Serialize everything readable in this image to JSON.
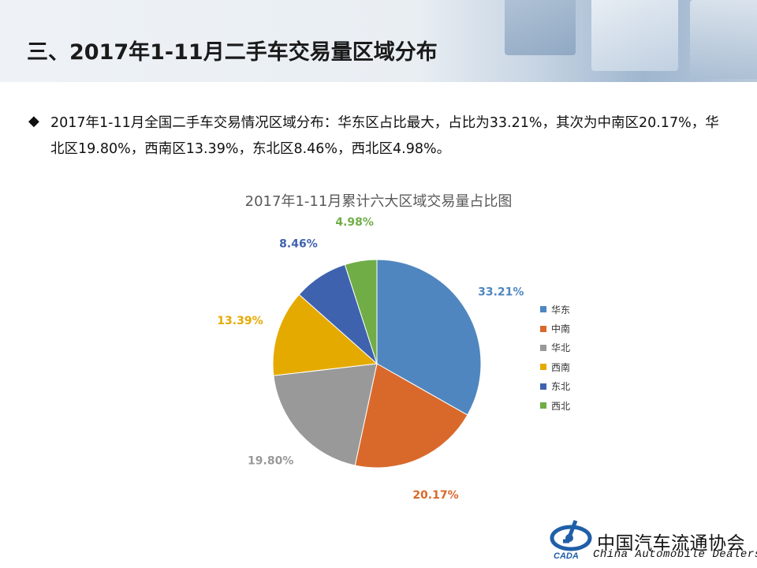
{
  "header": {
    "title": "三、2017年1-11月二手车交易量区域分布"
  },
  "bullet": {
    "text": "2017年1-11月全国二手车交易情况区域分布：华东区占比最大，占比为33.21%，其次为中南区20.17%，华北区19.80%，西南区13.39%，东北区8.46%，西北区4.98%。"
  },
  "chart_data": {
    "type": "pie",
    "title": "2017年1-11月累计六大区域交易量占比图",
    "categories": [
      "华东",
      "中南",
      "华北",
      "西南",
      "东北",
      "西北"
    ],
    "values": [
      33.21,
      20.17,
      19.8,
      13.39,
      8.46,
      4.98
    ],
    "labels": [
      "33.21%",
      "20.17%",
      "19.80%",
      "13.39%",
      "8.46%",
      "4.98%"
    ],
    "colors": [
      "#4F86C0",
      "#D9692B",
      "#999999",
      "#E5AA00",
      "#3F62AE",
      "#70AD47"
    ],
    "legend_position": "right"
  },
  "footer": {
    "org_name": "中国汽车流通协会",
    "org_name_en": "China  Automobile Dealers",
    "logo_text": "CADA"
  }
}
